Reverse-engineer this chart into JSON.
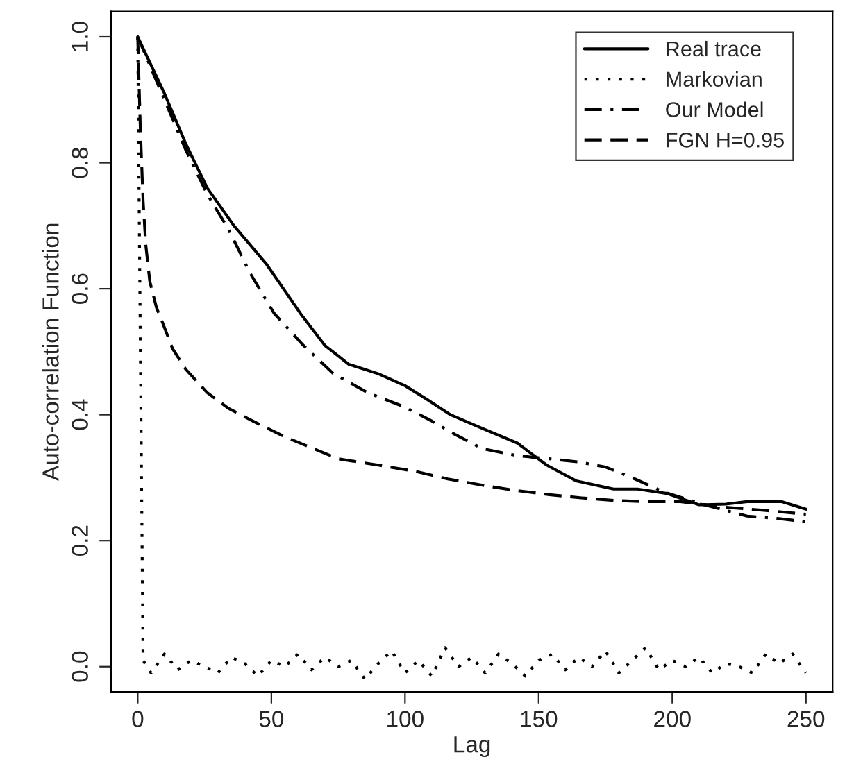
{
  "chart_data": {
    "type": "line",
    "xlabel": "Lag",
    "ylabel": "Auto-correlation Function",
    "xlim": [
      -10,
      260
    ],
    "ylim": [
      -0.04,
      1.04
    ],
    "xticks": [
      0,
      50,
      100,
      150,
      200,
      250
    ],
    "yticks": [
      {
        "value": 0,
        "label": "0.0"
      },
      {
        "value": 0.2,
        "label": "0.2"
      },
      {
        "value": 0.4,
        "label": "0.4"
      },
      {
        "value": 0.6,
        "label": "0.6"
      },
      {
        "value": 0.8,
        "label": "0.8"
      },
      {
        "value": 1,
        "label": "1.0"
      }
    ],
    "grid": false,
    "legend": "top right",
    "marker": "none",
    "series": [
      {
        "name": "Real trace",
        "color": "#000000",
        "line_style": "solid",
        "x": [
          0,
          10,
          18,
          26,
          36,
          48,
          61,
          70,
          79,
          90,
          100,
          108,
          117,
          128,
          142,
          153,
          164,
          178,
          187,
          198,
          210,
          220,
          228,
          241,
          250
        ],
        "values": [
          1.0,
          0.91,
          0.83,
          0.76,
          0.7,
          0.64,
          0.56,
          0.51,
          0.48,
          0.465,
          0.446,
          0.425,
          0.4,
          0.38,
          0.355,
          0.32,
          0.295,
          0.282,
          0.282,
          0.275,
          0.257,
          0.258,
          0.262,
          0.262,
          0.25
        ]
      },
      {
        "name": "Markovian",
        "color": "#000000",
        "line_style": "dotted",
        "x": [
          0,
          1,
          2,
          5,
          10,
          15,
          20,
          25,
          30,
          35,
          40,
          45,
          50,
          55,
          60,
          65,
          70,
          75,
          80,
          85,
          90,
          95,
          100,
          105,
          110,
          115,
          120,
          125,
          130,
          135,
          140,
          145,
          150,
          155,
          160,
          165,
          170,
          175,
          180,
          185,
          190,
          195,
          200,
          205,
          210,
          215,
          220,
          225,
          230,
          235,
          240,
          245,
          250
        ],
        "values": [
          1.0,
          0.5,
          0.01,
          -0.01,
          0.02,
          -0.005,
          0.01,
          0.0,
          -0.01,
          0.015,
          0.005,
          -0.015,
          0.01,
          0.0,
          0.02,
          -0.005,
          0.015,
          0.0,
          0.01,
          -0.02,
          0.005,
          0.025,
          -0.01,
          0.01,
          -0.015,
          0.03,
          0.0,
          0.015,
          -0.01,
          0.02,
          0.005,
          -0.015,
          0.01,
          0.02,
          -0.005,
          0.015,
          0.0,
          0.025,
          -0.01,
          0.01,
          0.03,
          -0.005,
          0.01,
          0.0,
          0.015,
          -0.01,
          0.005,
          0.0,
          -0.01,
          0.02,
          0.005,
          0.02,
          -0.01
        ]
      },
      {
        "name": "Our Model",
        "color": "#000000",
        "line_style": "dashdot",
        "x": [
          0,
          10,
          18,
          26,
          34,
          42,
          51,
          62,
          73,
          86,
          100,
          110,
          119,
          129,
          142,
          154,
          165,
          175,
          186,
          197,
          212,
          228,
          240,
          250
        ],
        "values": [
          1.0,
          0.9,
          0.82,
          0.75,
          0.694,
          0.625,
          0.561,
          0.51,
          0.466,
          0.435,
          0.412,
          0.39,
          0.368,
          0.346,
          0.335,
          0.33,
          0.325,
          0.317,
          0.298,
          0.277,
          0.257,
          0.239,
          0.235,
          0.23
        ]
      },
      {
        "name": "FGN H=0.95",
        "color": "#000000",
        "line_style": "dashed",
        "x": [
          0,
          1,
          2,
          3,
          4.5,
          7,
          9.4,
          13,
          18,
          26,
          34,
          43,
          55,
          75,
          90,
          104,
          116,
          129,
          141,
          154,
          166,
          178,
          190,
          203,
          212,
          220,
          235,
          250
        ],
        "values": [
          1.0,
          0.85,
          0.74,
          0.67,
          0.612,
          0.57,
          0.545,
          0.505,
          0.472,
          0.435,
          0.41,
          0.39,
          0.365,
          0.33,
          0.32,
          0.31,
          0.298,
          0.288,
          0.28,
          0.273,
          0.268,
          0.264,
          0.262,
          0.262,
          0.257,
          0.253,
          0.248,
          0.242
        ]
      }
    ]
  }
}
